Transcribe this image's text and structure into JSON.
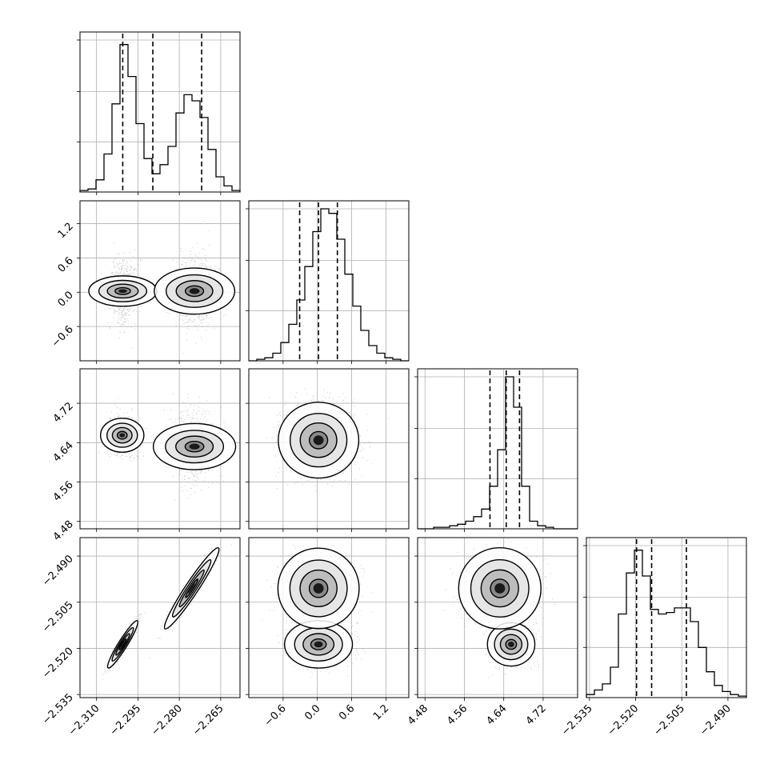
{
  "chart_data": {
    "type": "corner",
    "style": {
      "grid": true,
      "line_color": "#000000",
      "scatter_color": "#808080",
      "background": "#ffffff"
    },
    "parameters": [
      {
        "index": 0,
        "range": [
          -2.316,
          -2.258
        ],
        "ticks": [
          -2.31,
          -2.295,
          -2.28,
          -2.265
        ],
        "tick_labels": [
          "−2.310",
          "−2.295",
          "−2.280",
          "−2.265"
        ],
        "quantiles": [
          -2.3005,
          -2.2896,
          -2.2719
        ]
      },
      {
        "index": 1,
        "range": [
          -1.2,
          1.6
        ],
        "ticks": [
          -0.6,
          0.0,
          0.6,
          1.2
        ],
        "tick_labels": [
          "−0.6",
          "0.0",
          "0.6",
          "1.2"
        ],
        "quantiles": [
          -0.31,
          0.02,
          0.35
        ]
      },
      {
        "index": 2,
        "range": [
          4.465,
          4.79
        ],
        "ticks": [
          4.48,
          4.56,
          4.64,
          4.72
        ],
        "tick_labels": [
          "4.48",
          "4.56",
          "4.64",
          "4.72"
        ],
        "quantiles": [
          4.612,
          4.645,
          4.672
        ]
      },
      {
        "index": 3,
        "range": [
          -2.536,
          -2.484
        ],
        "ticks": [
          -2.535,
          -2.52,
          -2.505,
          -2.49
        ],
        "tick_labels": [
          "−2.535",
          "−2.520",
          "−2.505",
          "−2.490"
        ],
        "quantiles": [
          -2.5197,
          -2.5148,
          -2.5035
        ]
      }
    ],
    "histograms": [
      {
        "param": 0,
        "counts": [
          0.01,
          0.02,
          0.08,
          0.25,
          0.58,
          0.97,
          0.76,
          0.45,
          0.22,
          0.12,
          0.18,
          0.3,
          0.52,
          0.64,
          0.6,
          0.49,
          0.28,
          0.1,
          0.04,
          0.01
        ]
      },
      {
        "param": 1,
        "counts": [
          0.0,
          0.01,
          0.02,
          0.05,
          0.12,
          0.24,
          0.4,
          0.62,
          0.85,
          1.0,
          0.97,
          0.8,
          0.57,
          0.36,
          0.2,
          0.1,
          0.05,
          0.02,
          0.01,
          0.0
        ]
      },
      {
        "param": 2,
        "counts": [
          0.0,
          0.0,
          0.01,
          0.01,
          0.02,
          0.03,
          0.05,
          0.08,
          0.13,
          0.28,
          0.52,
          1.0,
          0.8,
          0.28,
          0.05,
          0.02,
          0.01,
          0.0,
          0.0,
          0.0
        ]
      },
      {
        "param": 3,
        "counts": [
          0.02,
          0.05,
          0.09,
          0.2,
          0.55,
          0.82,
          0.97,
          0.8,
          0.58,
          0.55,
          0.56,
          0.59,
          0.59,
          0.5,
          0.33,
          0.17,
          0.08,
          0.04,
          0.02,
          0.01
        ]
      }
    ],
    "pairs": [
      {
        "x": 0,
        "y": 1,
        "modes": [
          {
            "mx": -2.3005,
            "my": 0.02,
            "sx": 0.0025,
            "sy": 0.27,
            "rho": 0.0,
            "w": 0.5
          },
          {
            "mx": -2.2745,
            "my": 0.02,
            "sx": 0.0038,
            "sy": 0.32,
            "rho": 0.0,
            "w": 0.5
          }
        ]
      },
      {
        "x": 0,
        "y": 2,
        "modes": [
          {
            "mx": -2.3007,
            "my": 4.655,
            "sx": 0.0028,
            "sy": 0.02,
            "rho": 0.0,
            "w": 0.5
          },
          {
            "mx": -2.2745,
            "my": 4.632,
            "sx": 0.0038,
            "sy": 0.038,
            "rho": 0.0,
            "w": 0.5
          }
        ]
      },
      {
        "x": 0,
        "y": 3,
        "modes": [
          {
            "mx": -2.3005,
            "my": -2.5187,
            "sx": 0.0025,
            "sy": 0.0035,
            "rho": 0.94,
            "w": 0.5
          },
          {
            "mx": -2.2755,
            "my": -2.5005,
            "sx": 0.0045,
            "sy": 0.006,
            "rho": 0.96,
            "w": 0.5
          }
        ]
      },
      {
        "x": 1,
        "y": 2,
        "modes": [
          {
            "mx": 0.02,
            "my": 4.645,
            "sx": 0.32,
            "sy": 0.035,
            "rho": 0.0,
            "w": 1.0
          }
        ]
      },
      {
        "x": 1,
        "y": 3,
        "modes": [
          {
            "mx": 0.02,
            "my": -2.5187,
            "sx": 0.27,
            "sy": 0.0035,
            "rho": 0.0,
            "w": 0.5
          },
          {
            "mx": 0.02,
            "my": -2.5005,
            "sx": 0.32,
            "sy": 0.006,
            "rho": 0.0,
            "w": 0.5
          }
        ]
      },
      {
        "x": 2,
        "y": 3,
        "modes": [
          {
            "mx": 4.655,
            "my": -2.5187,
            "sx": 0.02,
            "sy": 0.0035,
            "rho": 0.0,
            "w": 0.5
          },
          {
            "mx": 4.632,
            "my": -2.5005,
            "sx": 0.038,
            "sy": 0.006,
            "rho": 0.0,
            "w": 0.5
          }
        ]
      }
    ]
  }
}
